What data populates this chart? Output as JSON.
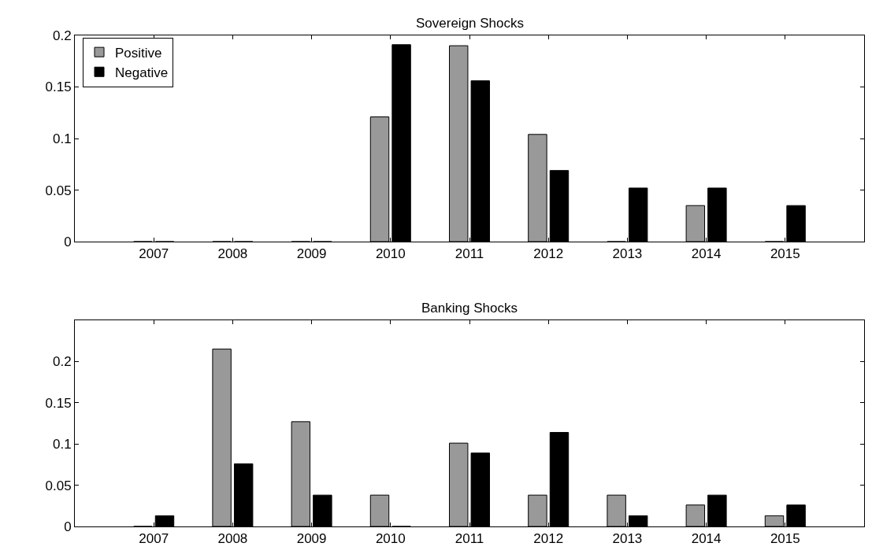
{
  "chart_data": [
    {
      "type": "bar",
      "title": "Sovereign Shocks",
      "categories": [
        "2007",
        "2008",
        "2009",
        "2010",
        "2011",
        "2012",
        "2013",
        "2014",
        "2015"
      ],
      "series": [
        {
          "name": "Positive",
          "color": "#999999",
          "values": [
            0,
            0,
            0,
            0.121,
            0.19,
            0.104,
            0,
            0.035,
            0
          ]
        },
        {
          "name": "Negative",
          "color": "#000000",
          "values": [
            0,
            0,
            0,
            0.191,
            0.156,
            0.069,
            0.052,
            0.052,
            0.035
          ]
        }
      ],
      "ylim": [
        0,
        0.2
      ],
      "yticks": [
        0,
        0.05,
        0.1,
        0.15,
        0.2
      ],
      "legend": "top left"
    },
    {
      "type": "bar",
      "title": "Banking Shocks",
      "categories": [
        "2007",
        "2008",
        "2009",
        "2010",
        "2011",
        "2012",
        "2013",
        "2014",
        "2015"
      ],
      "series": [
        {
          "color": "#999999",
          "values": [
            0,
            0.215,
            0.127,
            0.038,
            0.101,
            0.038,
            0.038,
            0.026,
            0.013
          ]
        },
        {
          "color": "#000000",
          "values": [
            0.013,
            0.076,
            0.038,
            0,
            0.089,
            0.114,
            0.013,
            0.038,
            0.026
          ]
        }
      ],
      "ylim": [
        0,
        0.25
      ],
      "yticks": [
        0,
        0.05,
        0.1,
        0.15,
        0.2
      ]
    }
  ]
}
